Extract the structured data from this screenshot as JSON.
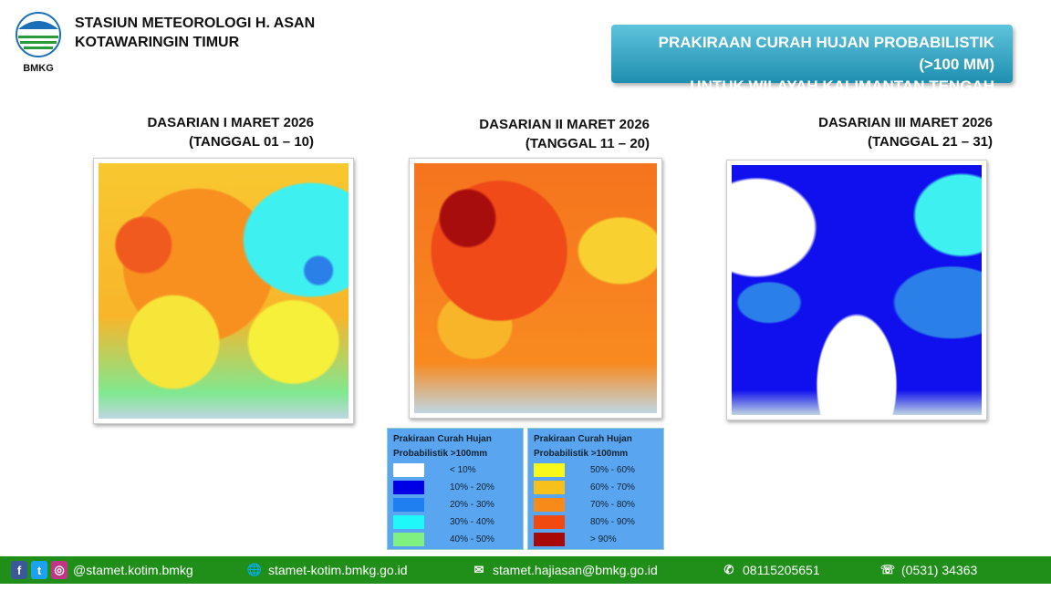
{
  "header": {
    "logo_text": "BMKG",
    "station_line1": "STASIUN METEOROLOGI H. ASAN",
    "station_line2": "KOTAWARINGIN TIMUR",
    "banner_line1": "PRAKIRAAN CURAH HUJAN PROBABILISTIK (>100 MM)",
    "banner_line2": "UNTUK WILAYAH KALIMANTAN TENGAH"
  },
  "panels": [
    {
      "title": "DASARIAN I MARET  2026",
      "dates": "(TANGGAL 01 – 10)"
    },
    {
      "title": "DASARIAN II MARET  2026",
      "dates": "(TANGGAL 11 – 20)"
    },
    {
      "title": "DASARIAN III MARET  2026",
      "dates": "(TANGGAL 21 – 31)"
    }
  ],
  "legend_left": {
    "title1": "Prakiraan Curah Hujan",
    "title2": "Probabilistik >100mm",
    "items": [
      {
        "label": "< 10%",
        "color": "#ffffff"
      },
      {
        "label": "10% - 20%",
        "color": "#0000e6"
      },
      {
        "label": "20% - 30%",
        "color": "#1e7ff0"
      },
      {
        "label": "30% - 40%",
        "color": "#1ef8f8"
      },
      {
        "label": "40% - 50%",
        "color": "#80f080"
      }
    ]
  },
  "legend_right": {
    "title1": "Prakiraan Curah Hujan",
    "title2": "Probabilistik >100mm",
    "items": [
      {
        "label": "50% - 60%",
        "color": "#f8f81a"
      },
      {
        "label": "60% - 70%",
        "color": "#f8c01a"
      },
      {
        "label": "70% - 80%",
        "color": "#f88a1a"
      },
      {
        "label": "80% - 90%",
        "color": "#f04a10"
      },
      {
        "label": "> 90%",
        "color": "#a80808"
      }
    ]
  },
  "footer": {
    "instagram": "@stamet.kotim.bmkg",
    "website": "stamet-kotim.bmkg.go.id",
    "email": "stamet.hajiasan@bmkg.go.id",
    "whatsapp": "08115205651",
    "phone": "(0531) 34363"
  }
}
